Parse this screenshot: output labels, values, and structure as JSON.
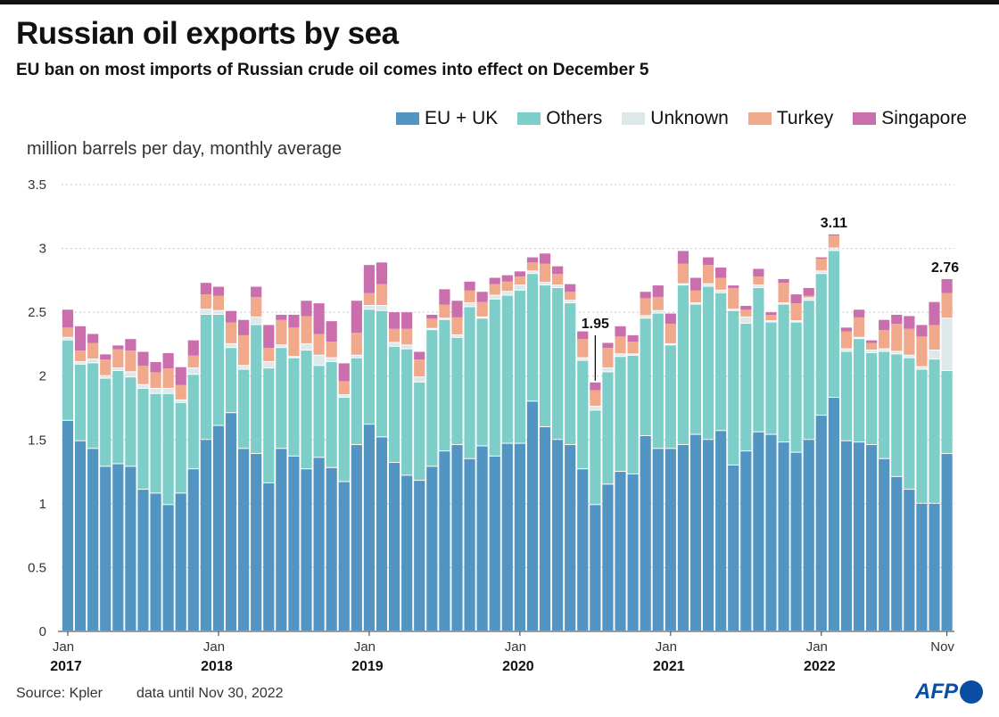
{
  "title": "Russian oil exports by sea",
  "subtitle": "EU ban on most imports of Russian crude oil comes into effect on December 5",
  "source": "Source: Kpler",
  "note": "data until Nov 30, 2022",
  "logo": "AFP",
  "chart_data": {
    "type": "bar",
    "stacked": true,
    "ylabel": "million barrels per day, monthly average",
    "ylim": [
      0,
      3.5
    ],
    "yticks": [
      "0",
      "0.5",
      "1",
      "1.5",
      "2",
      "2.5",
      "3",
      "3.5"
    ],
    "yticks_values": [
      0,
      0.5,
      1,
      1.5,
      2,
      2.5,
      3,
      3.5
    ],
    "grid": true,
    "legend_placement": "top-right",
    "x_start": "2017-01",
    "x_end": "2022-11",
    "xtick_labels": [
      {
        "month": "Jan",
        "year": "2017"
      },
      {
        "month": "Jan",
        "year": "2018"
      },
      {
        "month": "Jan",
        "year": "2019"
      },
      {
        "month": "Jan",
        "year": "2020"
      },
      {
        "month": "Jan",
        "year": "2021"
      },
      {
        "month": "Jan",
        "year": "2022"
      },
      {
        "month": "Nov",
        "year": ""
      }
    ],
    "annotations": [
      {
        "label": "1.95",
        "date": "2020-07",
        "value": 1.95
      },
      {
        "label": "3.11",
        "date": "2022-02",
        "value": 3.11
      },
      {
        "label": "2.76",
        "date": "2022-11",
        "value": 2.76
      }
    ],
    "series": [
      {
        "name": "EU + UK",
        "color": "#5295c3",
        "values": [
          1.65,
          1.49,
          1.43,
          1.29,
          1.31,
          1.29,
          1.11,
          1.08,
          0.99,
          1.08,
          1.27,
          1.5,
          1.61,
          1.71,
          1.43,
          1.39,
          1.16,
          1.43,
          1.37,
          1.27,
          1.36,
          1.28,
          1.17,
          1.46,
          1.62,
          1.52,
          1.32,
          1.22,
          1.18,
          1.29,
          1.41,
          1.46,
          1.35,
          1.45,
          1.37,
          1.47,
          1.47,
          1.8,
          1.6,
          1.5,
          1.46,
          1.27,
          0.99,
          1.15,
          1.25,
          1.23,
          1.53,
          1.43,
          1.43,
          1.46,
          1.54,
          1.5,
          1.57,
          1.3,
          1.41,
          1.56,
          1.54,
          1.48,
          1.4,
          1.5,
          1.69,
          1.83,
          1.49,
          1.48,
          1.46,
          1.35,
          1.21,
          1.11,
          1.0,
          1.0,
          1.39
        ]
      },
      {
        "name": "Others",
        "color": "#7dcdc8",
        "values": [
          0.63,
          0.6,
          0.67,
          0.69,
          0.73,
          0.7,
          0.79,
          0.78,
          0.87,
          0.71,
          0.74,
          0.98,
          0.87,
          0.51,
          0.62,
          1.01,
          0.9,
          0.79,
          0.77,
          0.93,
          0.72,
          0.83,
          0.66,
          0.68,
          0.9,
          0.99,
          0.91,
          0.99,
          0.77,
          1.07,
          1.03,
          0.84,
          1.19,
          1.0,
          1.23,
          1.16,
          1.2,
          1.0,
          1.11,
          1.19,
          1.11,
          0.85,
          0.74,
          0.88,
          0.9,
          0.93,
          0.92,
          1.06,
          0.81,
          1.25,
          1.02,
          1.2,
          1.08,
          1.21,
          1.0,
          1.13,
          0.88,
          1.08,
          1.02,
          1.09,
          1.11,
          1.15,
          0.7,
          0.81,
          0.72,
          0.84,
          0.96,
          1.03,
          1.05,
          1.13,
          0.65
        ]
      },
      {
        "name": "Unknown",
        "color": "#dce8ea",
        "values": [
          0.02,
          0.02,
          0.03,
          0.02,
          0.02,
          0.04,
          0.03,
          0.04,
          0.04,
          0.02,
          0.05,
          0.04,
          0.03,
          0.03,
          0.03,
          0.06,
          0.05,
          0.02,
          0.01,
          0.05,
          0.08,
          0.03,
          0.02,
          0.02,
          0.03,
          0.04,
          0.03,
          0.03,
          0.04,
          0.01,
          0.01,
          0.02,
          0.03,
          0.01,
          0.03,
          0.03,
          0.04,
          0.02,
          0.02,
          0.02,
          0.02,
          0.02,
          0.03,
          0.03,
          0.02,
          0.01,
          0.02,
          0.02,
          0.01,
          0.01,
          0.01,
          0.02,
          0.02,
          0.01,
          0.05,
          0.02,
          0.01,
          0.01,
          0.01,
          0.02,
          0.02,
          0.02,
          0.02,
          0.01,
          0.02,
          0.02,
          0.02,
          0.02,
          0.02,
          0.07,
          0.41
        ]
      },
      {
        "name": "Turkey",
        "color": "#f0a98a",
        "values": [
          0.08,
          0.09,
          0.13,
          0.13,
          0.15,
          0.17,
          0.15,
          0.13,
          0.16,
          0.12,
          0.1,
          0.12,
          0.12,
          0.17,
          0.24,
          0.16,
          0.11,
          0.2,
          0.23,
          0.22,
          0.17,
          0.13,
          0.11,
          0.18,
          0.1,
          0.17,
          0.11,
          0.13,
          0.14,
          0.08,
          0.11,
          0.14,
          0.1,
          0.12,
          0.09,
          0.08,
          0.07,
          0.07,
          0.15,
          0.09,
          0.07,
          0.15,
          0.13,
          0.16,
          0.14,
          0.1,
          0.14,
          0.11,
          0.16,
          0.16,
          0.1,
          0.15,
          0.1,
          0.17,
          0.06,
          0.07,
          0.05,
          0.16,
          0.14,
          0.02,
          0.1,
          0.1,
          0.14,
          0.16,
          0.06,
          0.15,
          0.22,
          0.21,
          0.24,
          0.2,
          0.2
        ]
      },
      {
        "name": "Singapore",
        "color": "#cb6eae",
        "values": [
          0.14,
          0.19,
          0.07,
          0.04,
          0.03,
          0.09,
          0.11,
          0.08,
          0.12,
          0.14,
          0.12,
          0.09,
          0.07,
          0.09,
          0.12,
          0.08,
          0.18,
          0.04,
          0.1,
          0.12,
          0.24,
          0.16,
          0.14,
          0.25,
          0.22,
          0.17,
          0.13,
          0.13,
          0.06,
          0.03,
          0.12,
          0.13,
          0.07,
          0.08,
          0.05,
          0.05,
          0.04,
          0.04,
          0.08,
          0.06,
          0.06,
          0.06,
          0.06,
          0.04,
          0.08,
          0.05,
          0.05,
          0.09,
          0.08,
          0.1,
          0.1,
          0.06,
          0.08,
          0.02,
          0.03,
          0.06,
          0.02,
          0.03,
          0.07,
          0.06,
          0.01,
          0.01,
          0.03,
          0.06,
          0.02,
          0.08,
          0.07,
          0.1,
          0.09,
          0.18,
          0.11
        ]
      }
    ]
  }
}
